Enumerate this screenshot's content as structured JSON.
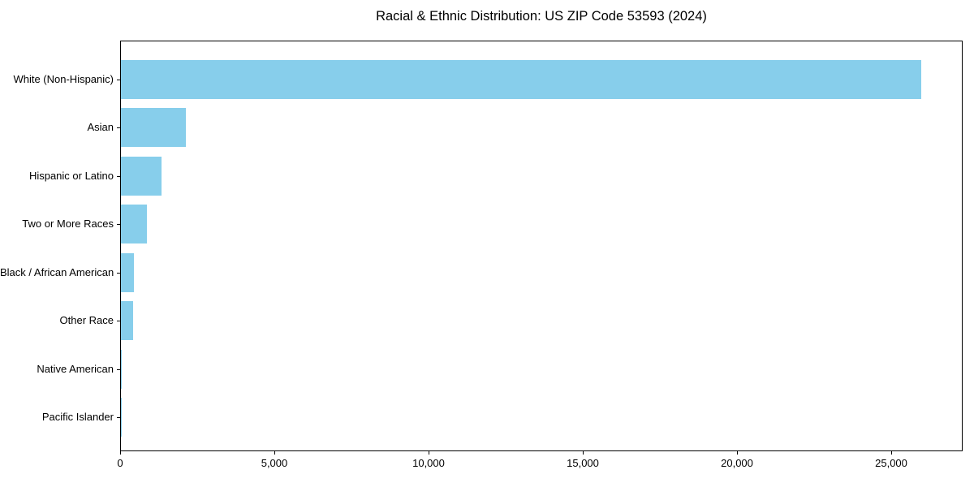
{
  "title": "Racial & Ethnic Distribution: US ZIP Code 53593 (2024)",
  "chart_data": {
    "type": "bar",
    "orientation": "horizontal",
    "title": "Racial & Ethnic Distribution: US ZIP Code 53593 (2024)",
    "categories": [
      "White (Non-Hispanic)",
      "Asian",
      "Hispanic or Latino",
      "Two or More Races",
      "Black / African American",
      "Other Race",
      "Native American",
      "Pacific Islander"
    ],
    "values": [
      26000,
      2100,
      1320,
      850,
      420,
      400,
      35,
      10
    ],
    "xlabel": "",
    "ylabel": "",
    "xlim": [
      0,
      27315
    ],
    "x_ticks": [
      0,
      5000,
      10000,
      15000,
      20000,
      25000
    ],
    "x_tick_labels": [
      "0",
      "5,000",
      "10,000",
      "15,000",
      "20,000",
      "25,000"
    ],
    "bar_color": "#87ceeb",
    "axis_color": "#000000",
    "text_color": "#000000",
    "grid": false,
    "legend": "none"
  }
}
